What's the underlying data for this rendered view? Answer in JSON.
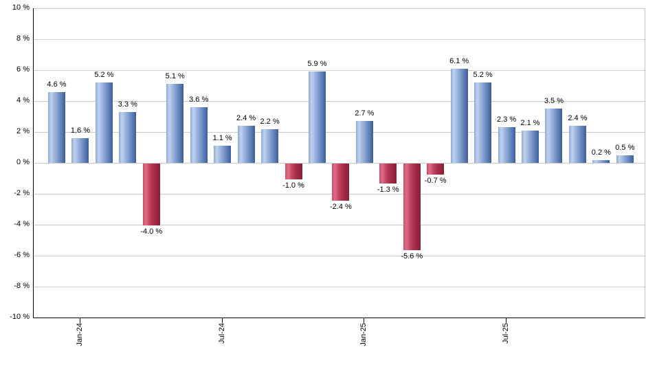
{
  "chart_data": {
    "type": "bar",
    "title": "",
    "xlabel": "",
    "ylabel": "",
    "unit": "%",
    "ylim": [
      -10,
      10
    ],
    "y_tick_step": 2,
    "grid": true,
    "legend": false,
    "values": [
      4.6,
      1.6,
      5.2,
      3.3,
      -4.0,
      5.1,
      3.6,
      1.1,
      2.4,
      2.2,
      -1.0,
      5.9,
      -2.4,
      2.7,
      -1.3,
      -5.6,
      -0.7,
      6.1,
      5.2,
      2.3,
      2.1,
      3.5,
      2.4,
      0.2,
      0.5
    ],
    "value_labels": [
      "4.6 %",
      "1.6 %",
      "5.2 %",
      "3.3 %",
      "-4.0 %",
      "5.1 %",
      "3.6 %",
      "1.1 %",
      "2.4 %",
      "2.2 %",
      "-1.0 %",
      "5.9 %",
      "-2.4 %",
      "2.7 %",
      "-1.3 %",
      "-5.6 %",
      "-0.7 %",
      "6.1 %",
      "5.2 %",
      "2.3 %",
      "2.1 %",
      "3.5 %",
      "2.4 %",
      "0.2 %",
      "0.5 %"
    ],
    "y_tick_labels": [
      "10 %",
      "8 %",
      "6 %",
      "4 %",
      "2 %",
      "0 %",
      "-2 %",
      "-4 %",
      "-6 %",
      "-8 %",
      "-10 %"
    ],
    "x_tick_labels": [
      "Jan-24",
      "Jul-24",
      "Jan-25",
      "Jul-25"
    ],
    "x_tick_bar_indices": [
      1,
      7,
      13,
      19
    ],
    "colors": {
      "background": "#ffffff",
      "axis": "#000000",
      "gridline": "#c9c9c9",
      "label_text": "#000000",
      "positive_gradient_stops": [
        "#8FA9D6",
        "#C0D2EE",
        "#9CB5E0",
        "#7A97CB",
        "#5878B0",
        "#3E5C96"
      ],
      "negative_gradient_stops": [
        "#C94E68",
        "#DE6D86",
        "#C44560",
        "#AA2F4C",
        "#982641",
        "#8A1C38"
      ],
      "gradient_stop_positions": [
        0,
        18,
        38,
        60,
        82,
        100
      ]
    }
  }
}
